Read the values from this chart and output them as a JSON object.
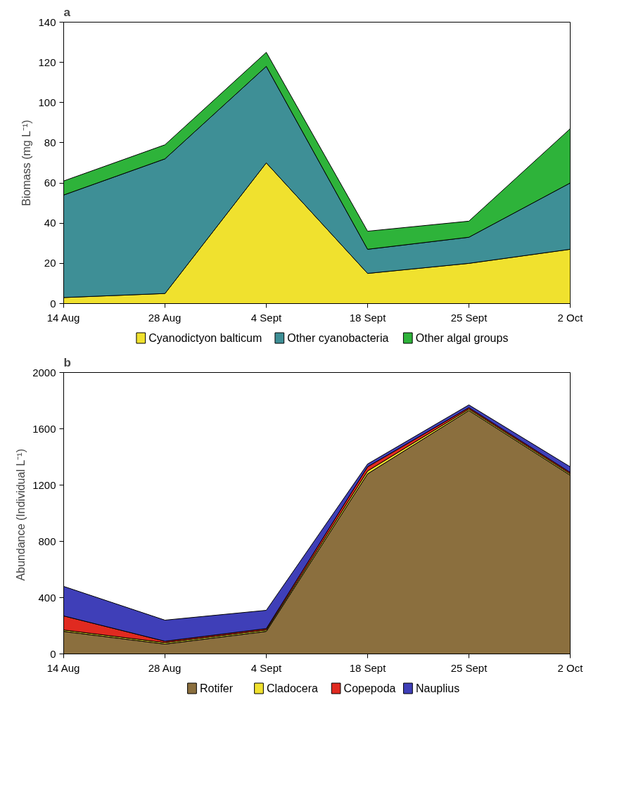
{
  "chart_data": [
    {
      "type": "area",
      "title": "a",
      "stacked": true,
      "ylabel": "Biomass (mg L⁻¹)",
      "categories": [
        "14 Aug",
        "28 Aug",
        "4 Sept",
        "18 Sept",
        "25 Sept",
        "2 Oct"
      ],
      "ylim": [
        0,
        140
      ],
      "yticks": [
        0,
        20,
        40,
        60,
        80,
        100,
        120,
        140
      ],
      "grid": false,
      "legend": "bottom",
      "series": [
        {
          "name": "Cyanodictyon balticum",
          "color": "#f0e12e",
          "values": [
            3,
            5,
            70,
            15,
            20,
            27
          ]
        },
        {
          "name": "Other cyanobacteria",
          "color": "#3e8f96",
          "values": [
            51,
            67,
            48,
            12,
            13,
            33
          ]
        },
        {
          "name": "Other algal groups",
          "color": "#2eb33a",
          "values": [
            7,
            7,
            7,
            9,
            8,
            27
          ]
        }
      ]
    },
    {
      "type": "area",
      "title": "b",
      "stacked": true,
      "ylabel": "Abundance (Individual  L⁻¹)",
      "categories": [
        "14 Aug",
        "28 Aug",
        "4 Sept",
        "18 Sept",
        "25 Sept",
        "2 Oct"
      ],
      "ylim": [
        0,
        2000
      ],
      "yticks": [
        0,
        400,
        800,
        1200,
        1600,
        2000
      ],
      "grid": false,
      "legend": "bottom",
      "series": [
        {
          "name": "Rotifer",
          "color": "#8b6f3e",
          "values": [
            160,
            70,
            160,
            1280,
            1730,
            1270
          ]
        },
        {
          "name": "Cladocera",
          "color": "#f0e12e",
          "values": [
            10,
            10,
            10,
            20,
            10,
            10
          ]
        },
        {
          "name": "Copepoda",
          "color": "#e02a20",
          "values": [
            100,
            10,
            10,
            30,
            10,
            10
          ]
        },
        {
          "name": "Nauplius",
          "color": "#3f3fb8",
          "values": [
            210,
            150,
            130,
            20,
            20,
            40
          ]
        }
      ]
    }
  ]
}
